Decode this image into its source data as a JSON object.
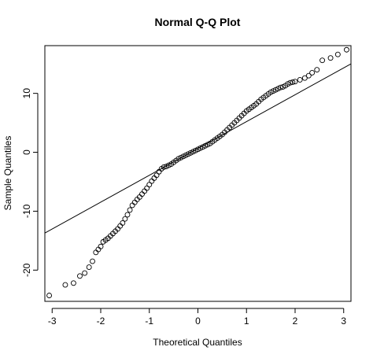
{
  "chart_data": {
    "type": "scatter",
    "title": "Normal Q-Q Plot",
    "xlabel": "Theoretical Quantiles",
    "ylabel": "Sample Quantiles",
    "xlim": [
      -3.15,
      3.15
    ],
    "ylim": [
      -25.3,
      18.1
    ],
    "xticks": [
      -3,
      -2,
      -1,
      0,
      1,
      2,
      3
    ],
    "yticks": [
      -20,
      -10,
      0,
      10
    ],
    "grid": false,
    "reference_line": {
      "points": [
        [
          -3.5,
          -15.3
        ],
        [
          3.5,
          16.6
        ]
      ]
    },
    "series": [
      {
        "marker": "open-circle",
        "points": [
          [
            -3.06,
            -24.3
          ],
          [
            -2.73,
            -22.5
          ],
          [
            -2.56,
            -22.2
          ],
          [
            -2.43,
            -21.0
          ],
          [
            -2.33,
            -20.5
          ],
          [
            -2.24,
            -19.5
          ],
          [
            -2.17,
            -18.5
          ],
          [
            -2.1,
            -17.0
          ],
          [
            -2.05,
            -16.5
          ],
          [
            -2.0,
            -16.0
          ],
          [
            -1.95,
            -15.2
          ],
          [
            -1.9,
            -14.9
          ],
          [
            -1.85,
            -14.6
          ],
          [
            -1.8,
            -14.2
          ],
          [
            -1.75,
            -13.8
          ],
          [
            -1.7,
            -13.4
          ],
          [
            -1.65,
            -13.0
          ],
          [
            -1.6,
            -12.5
          ],
          [
            -1.55,
            -12.0
          ],
          [
            -1.5,
            -11.3
          ],
          [
            -1.45,
            -10.6
          ],
          [
            -1.4,
            -9.8
          ],
          [
            -1.35,
            -9.0
          ],
          [
            -1.3,
            -8.5
          ],
          [
            -1.25,
            -8.0
          ],
          [
            -1.2,
            -7.6
          ],
          [
            -1.15,
            -7.1
          ],
          [
            -1.1,
            -6.6
          ],
          [
            -1.05,
            -6.1
          ],
          [
            -1.0,
            -5.5
          ],
          [
            -0.95,
            -4.9
          ],
          [
            -0.9,
            -4.4
          ],
          [
            -0.85,
            -3.9
          ],
          [
            -0.8,
            -3.3
          ],
          [
            -0.75,
            -2.8
          ],
          [
            -0.7,
            -2.5
          ],
          [
            -0.65,
            -2.4
          ],
          [
            -0.6,
            -2.2
          ],
          [
            -0.55,
            -2.0
          ],
          [
            -0.5,
            -1.7
          ],
          [
            -0.45,
            -1.4
          ],
          [
            -0.4,
            -1.1
          ],
          [
            -0.35,
            -0.9
          ],
          [
            -0.3,
            -0.7
          ],
          [
            -0.25,
            -0.5
          ],
          [
            -0.2,
            -0.3
          ],
          [
            -0.15,
            -0.1
          ],
          [
            -0.1,
            0.1
          ],
          [
            -0.05,
            0.3
          ],
          [
            0.0,
            0.5
          ],
          [
            0.05,
            0.7
          ],
          [
            0.1,
            0.9
          ],
          [
            0.15,
            1.1
          ],
          [
            0.2,
            1.3
          ],
          [
            0.25,
            1.5
          ],
          [
            0.3,
            1.8
          ],
          [
            0.35,
            2.1
          ],
          [
            0.4,
            2.4
          ],
          [
            0.45,
            2.7
          ],
          [
            0.5,
            3.0
          ],
          [
            0.55,
            3.4
          ],
          [
            0.6,
            3.8
          ],
          [
            0.65,
            4.2
          ],
          [
            0.7,
            4.6
          ],
          [
            0.75,
            5.0
          ],
          [
            0.8,
            5.4
          ],
          [
            0.85,
            5.8
          ],
          [
            0.9,
            6.2
          ],
          [
            0.95,
            6.6
          ],
          [
            1.0,
            7.0
          ],
          [
            1.05,
            7.3
          ],
          [
            1.1,
            7.6
          ],
          [
            1.15,
            7.9
          ],
          [
            1.2,
            8.2
          ],
          [
            1.25,
            8.6
          ],
          [
            1.3,
            9.0
          ],
          [
            1.35,
            9.3
          ],
          [
            1.4,
            9.6
          ],
          [
            1.45,
            9.9
          ],
          [
            1.5,
            10.2
          ],
          [
            1.55,
            10.4
          ],
          [
            1.6,
            10.6
          ],
          [
            1.65,
            10.8
          ],
          [
            1.7,
            11.0
          ],
          [
            1.75,
            11.1
          ],
          [
            1.8,
            11.3
          ],
          [
            1.85,
            11.6
          ],
          [
            1.9,
            11.8
          ],
          [
            1.95,
            11.9
          ],
          [
            2.0,
            12.0
          ],
          [
            2.1,
            12.3
          ],
          [
            2.2,
            12.6
          ],
          [
            2.28,
            13.0
          ],
          [
            2.35,
            13.5
          ],
          [
            2.45,
            14.0
          ],
          [
            2.56,
            15.6
          ],
          [
            2.73,
            16.0
          ],
          [
            2.88,
            16.6
          ],
          [
            3.06,
            17.4
          ]
        ]
      }
    ]
  }
}
